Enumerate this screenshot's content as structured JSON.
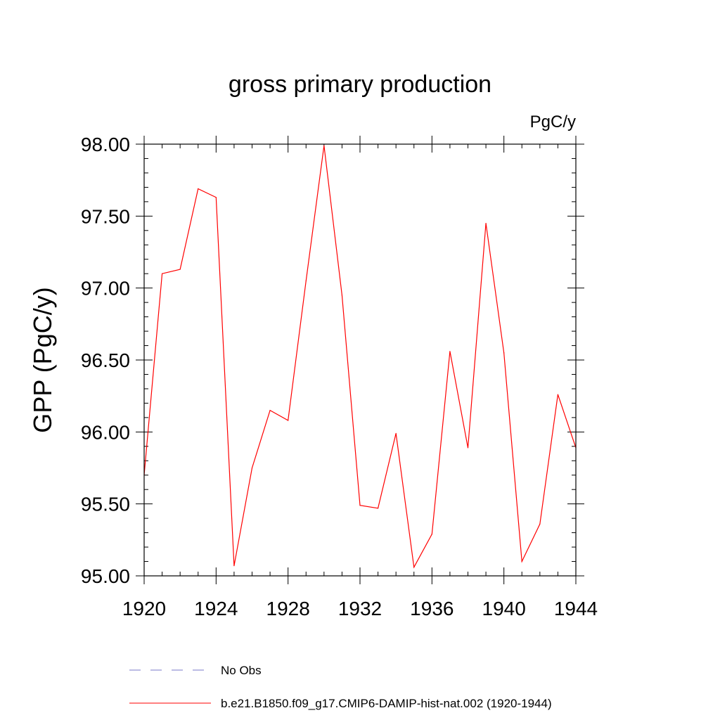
{
  "chart_data": {
    "type": "line",
    "title": "gross primary production",
    "units_label": "PgC/y",
    "ylabel": "GPP  (PgC/y)",
    "xlabel": "",
    "xlim": [
      1920,
      1944
    ],
    "ylim": [
      95.0,
      98.0
    ],
    "x_ticks": [
      1920,
      1924,
      1928,
      1932,
      1936,
      1940,
      1944
    ],
    "x_tick_labels": [
      "1920",
      "1924",
      "1928",
      "1932",
      "1936",
      "1940",
      "1944"
    ],
    "y_ticks": [
      95.0,
      95.5,
      96.0,
      96.5,
      97.0,
      97.5,
      98.0
    ],
    "y_tick_labels": [
      "95.00",
      "95.50",
      "96.00",
      "96.50",
      "97.00",
      "97.50",
      "98.00"
    ],
    "grid": false,
    "legend_position": "bottom",
    "x": [
      1920,
      1921,
      1922,
      1923,
      1924,
      1925,
      1926,
      1927,
      1928,
      1929,
      1930,
      1931,
      1932,
      1933,
      1934,
      1935,
      1936,
      1937,
      1938,
      1939,
      1940,
      1941,
      1942,
      1943,
      1944
    ],
    "series": [
      {
        "name": "b.e21.B1850.f09_g17.CMIP6-DAMIP-hist-nat.002 (1920-1944)",
        "color": "#ff0000",
        "style": "solid",
        "values": [
          95.7,
          97.1,
          97.13,
          97.69,
          97.63,
          95.07,
          95.75,
          96.15,
          96.08,
          97.05,
          97.99,
          96.95,
          95.49,
          95.47,
          95.99,
          95.06,
          95.29,
          96.56,
          95.89,
          97.45,
          96.55,
          95.1,
          95.36,
          96.26,
          95.89
        ]
      }
    ],
    "legend": [
      {
        "label": "No Obs",
        "color": "#7a7ac8",
        "style": "dashed"
      },
      {
        "label": "b.e21.B1850.f09_g17.CMIP6-DAMIP-hist-nat.002 (1920-1944)",
        "color": "#ff0000",
        "style": "solid"
      }
    ]
  }
}
